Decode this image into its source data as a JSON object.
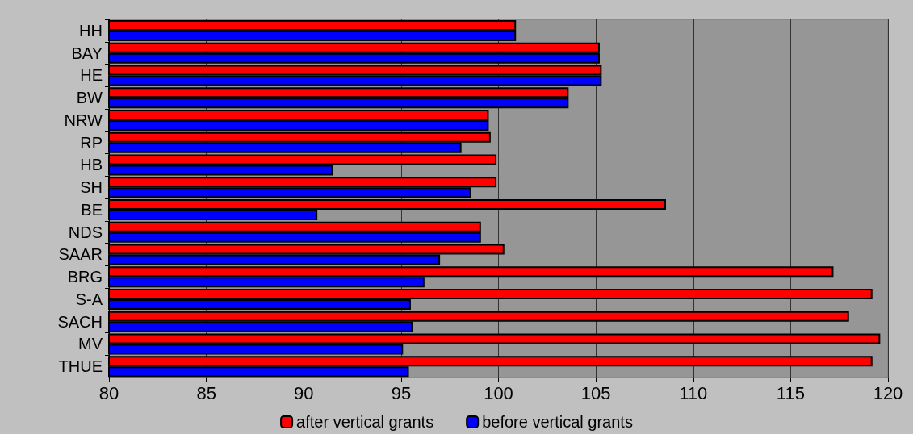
{
  "chart_data": {
    "type": "bar",
    "orientation": "horizontal",
    "categories": [
      "HH",
      "BAY",
      "HE",
      "BW",
      "NRW",
      "RP",
      "HB",
      "SH",
      "BE",
      "NDS",
      "SAAR",
      "BRG",
      "S-A",
      "SACH",
      "MV",
      "THUE"
    ],
    "series": [
      {
        "name": "after vertical grants",
        "color": "#ff0000",
        "values": [
          100.9,
          105.2,
          105.3,
          103.6,
          99.5,
          99.6,
          99.9,
          99.9,
          108.6,
          99.1,
          100.3,
          117.2,
          119.2,
          118.0,
          119.6,
          119.2
        ]
      },
      {
        "name": "before vertical grants",
        "color": "#0000ff",
        "values": [
          100.9,
          105.2,
          105.3,
          103.6,
          99.5,
          98.1,
          91.5,
          98.6,
          90.7,
          99.1,
          97.0,
          96.2,
          95.5,
          95.6,
          95.1,
          95.4
        ]
      }
    ],
    "xlim": [
      80,
      120
    ],
    "xticks": [
      80,
      85,
      90,
      95,
      100,
      105,
      110,
      115,
      120
    ],
    "grid": "x",
    "legend": "bottom"
  }
}
